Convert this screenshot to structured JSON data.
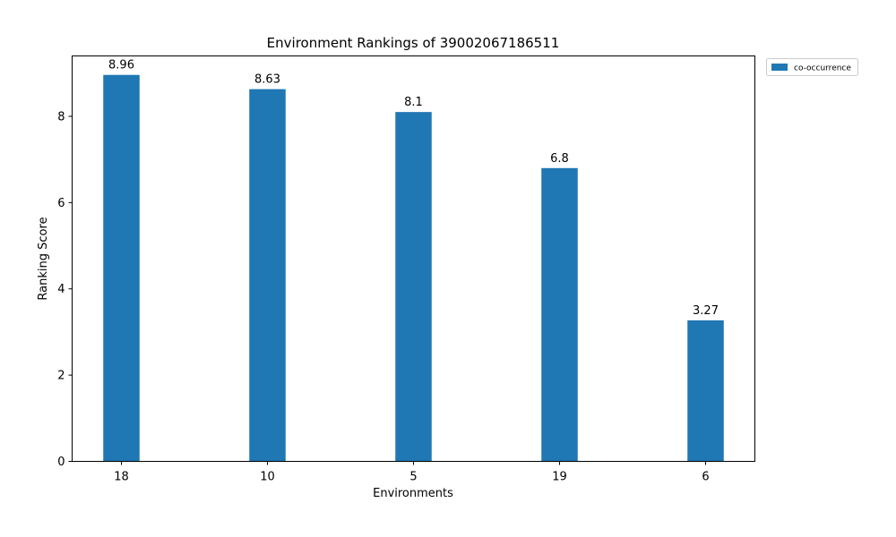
{
  "chart_data": {
    "type": "bar",
    "title": "Environment Rankings of 39002067186511",
    "xlabel": "Environments",
    "ylabel": "Ranking Score",
    "categories": [
      "18",
      "10",
      "5",
      "19",
      "6"
    ],
    "series": [
      {
        "name": "co-occurrence",
        "values": [
          8.96,
          8.63,
          8.1,
          6.8,
          3.27
        ],
        "color": "#1f77b4"
      }
    ],
    "data_labels": [
      "8.96",
      "8.63",
      "8.1",
      "6.8",
      "3.27"
    ],
    "ylim": [
      0,
      9.4
    ],
    "yticks": [
      0,
      2,
      4,
      6,
      8
    ],
    "ytick_labels": [
      "0",
      "2",
      "4",
      "6",
      "8"
    ],
    "grid": false,
    "legend_position": "outside-top-right"
  }
}
